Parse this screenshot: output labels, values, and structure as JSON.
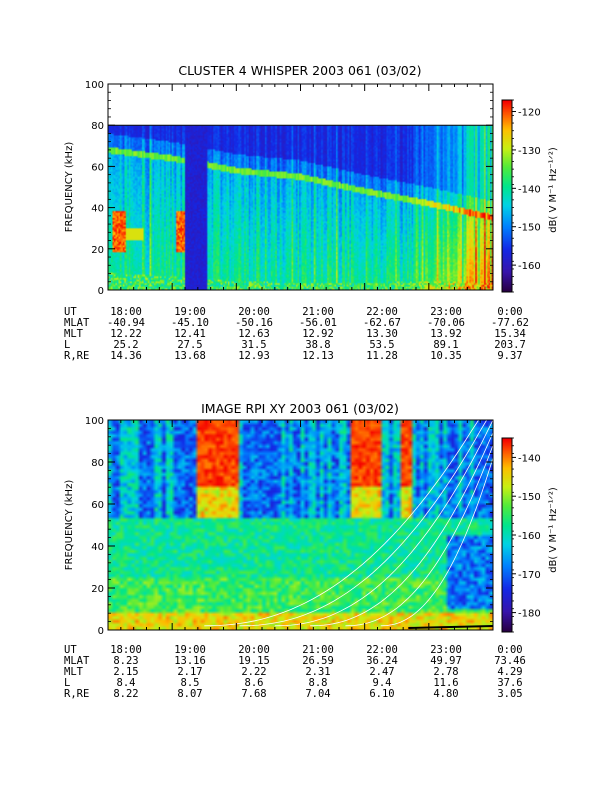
{
  "chart_data": [
    {
      "type": "heatmap",
      "title": "CLUSTER 4 WHISPER 2003 061 (03/02)",
      "ylabel": "FREQUENCY (kHz)",
      "ylim": [
        0,
        100
      ],
      "yticks": [
        "0",
        "20",
        "40",
        "60",
        "80",
        "100"
      ],
      "ytick_values": [
        0,
        20,
        40,
        60,
        80,
        100
      ],
      "x_ticks": [
        "18:00",
        "19:00",
        "20:00",
        "21:00",
        "22:00",
        "23:00",
        "0:00"
      ],
      "colorbar": {
        "label": "dB( V M⁻¹ Hz⁻¹ᐟ²)",
        "range": [
          -167,
          -117
        ],
        "ticks": [
          "-120",
          "-130",
          "-140",
          "-150",
          "-160"
        ],
        "tick_values": [
          -120,
          -130,
          -140,
          -150,
          -160
        ]
      },
      "data_top_khz": 80,
      "features": {
        "lower_envelope_khz": [
          8,
          6,
          4,
          3,
          3,
          4,
          3
        ],
        "plasma_line_khz": [
          68,
          64,
          58,
          55,
          48,
          42,
          35
        ],
        "burst_red_start_hours": [
          0.05,
          1.05
        ],
        "brightening_after_hours": 4.6
      },
      "ephemeris": {
        "labels": [
          "UT",
          "MLAT",
          "MLT",
          "L",
          "R,RE"
        ],
        "rows": [
          [
            "18:00",
            "19:00",
            "20:00",
            "21:00",
            "22:00",
            "23:00",
            "0:00"
          ],
          [
            "-40.94",
            "-45.10",
            "-50.16",
            "-56.01",
            "-62.67",
            "-70.06",
            "-77.62"
          ],
          [
            "12.22",
            "12.41",
            "12.63",
            "12.92",
            "13.30",
            "13.92",
            "15.34"
          ],
          [
            "25.2",
            "27.5",
            "31.5",
            "38.8",
            "53.5",
            "89.1",
            "203.7"
          ],
          [
            "14.36",
            "13.68",
            "12.93",
            "12.13",
            "11.28",
            "10.35",
            "9.37"
          ]
        ]
      }
    },
    {
      "type": "heatmap",
      "title": "IMAGE RPI XY 2003 061 (03/02)",
      "ylabel": "FREQUENCY (kHz)",
      "ylim": [
        0,
        100
      ],
      "yticks": [
        "0",
        "20",
        "40",
        "60",
        "80",
        "100"
      ],
      "ytick_values": [
        0,
        20,
        40,
        60,
        80,
        100
      ],
      "x_ticks": [
        "18:00",
        "19:00",
        "20:00",
        "21:00",
        "22:00",
        "23:00",
        "0:00"
      ],
      "colorbar": {
        "label": "dB( V M⁻¹ Hz⁻¹ᐟ²)",
        "range": [
          -185,
          -135
        ],
        "ticks": [
          "-140",
          "-150",
          "-160",
          "-170",
          "-180"
        ],
        "tick_values": [
          -140,
          -150,
          -160,
          -170,
          -180
        ]
      },
      "data_top_khz": 102,
      "features": {
        "red_blocks_hours": [
          [
            1.35,
            2.05
          ],
          [
            3.8,
            4.25
          ],
          [
            4.55,
            4.75
          ]
        ],
        "upper_blue_until_khz": 55,
        "gyro_curves": 6
      },
      "ephemeris": {
        "labels": [
          "UT",
          "MLAT",
          "MLT",
          "L",
          "R,RE"
        ],
        "rows": [
          [
            "18:00",
            "19:00",
            "20:00",
            "21:00",
            "22:00",
            "23:00",
            "0:00"
          ],
          [
            "8.23",
            "13.16",
            "19.15",
            "26.59",
            "36.24",
            "49.97",
            "73.46"
          ],
          [
            "2.15",
            "2.17",
            "2.22",
            "2.31",
            "2.47",
            "2.78",
            "4.29"
          ],
          [
            "8.4",
            "8.5",
            "8.6",
            "8.8",
            "9.4",
            "11.6",
            "37.6"
          ],
          [
            "8.22",
            "8.07",
            "7.68",
            "7.04",
            "6.10",
            "4.80",
            "3.05"
          ]
        ]
      }
    }
  ]
}
